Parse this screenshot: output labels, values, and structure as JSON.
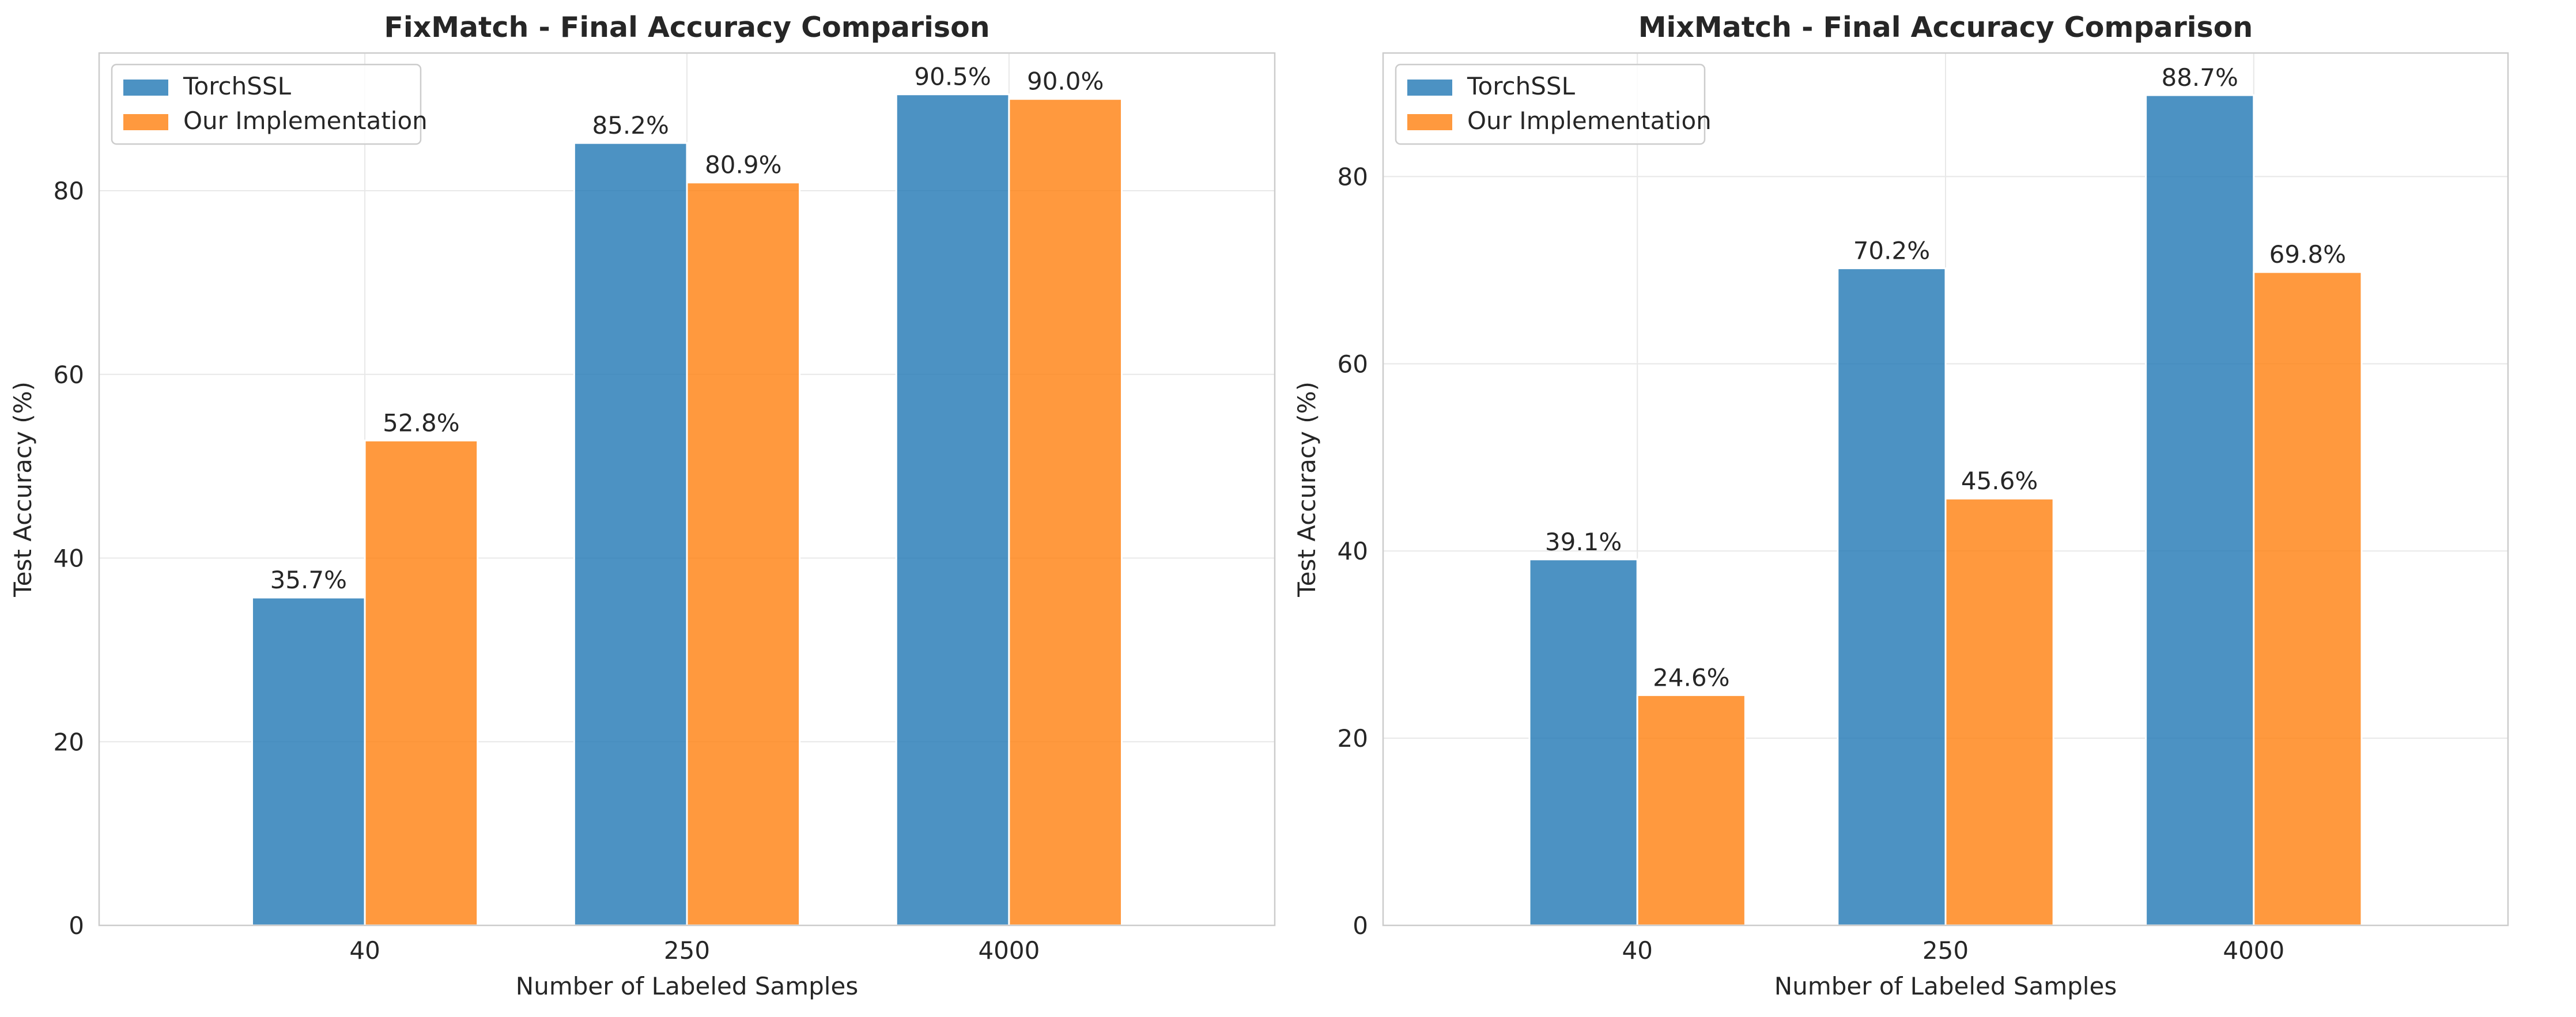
{
  "chart_data": [
    {
      "type": "bar",
      "title": "FixMatch - Final Accuracy Comparison",
      "xlabel": "Number of Labeled Samples",
      "ylabel": "Test Accuracy (%)",
      "categories": [
        "40",
        "250",
        "4000"
      ],
      "series": [
        {
          "name": "TorchSSL",
          "values": [
            35.7,
            85.2,
            90.5
          ],
          "labels": [
            "35.7%",
            "85.2%",
            "90.5%"
          ],
          "color": "#1f77b4"
        },
        {
          "name": "Our Implementation",
          "values": [
            52.8,
            80.9,
            90.0
          ],
          "labels": [
            "52.8%",
            "80.9%",
            "90.0%"
          ],
          "color": "#ff7f0e"
        }
      ],
      "ylim": [
        0,
        95
      ],
      "yticks": [
        0,
        20,
        40,
        60,
        80
      ],
      "grid": true,
      "legend": "top-left"
    },
    {
      "type": "bar",
      "title": "MixMatch - Final Accuracy Comparison",
      "xlabel": "Number of Labeled Samples",
      "ylabel": "Test Accuracy (%)",
      "categories": [
        "40",
        "250",
        "4000"
      ],
      "series": [
        {
          "name": "TorchSSL",
          "values": [
            39.1,
            70.2,
            88.7
          ],
          "labels": [
            "39.1%",
            "70.2%",
            "88.7%"
          ],
          "color": "#1f77b4"
        },
        {
          "name": "Our Implementation",
          "values": [
            24.6,
            45.6,
            69.8
          ],
          "labels": [
            "24.6%",
            "45.6%",
            "69.8%"
          ],
          "color": "#ff7f0e"
        }
      ],
      "ylim": [
        0,
        93.2
      ],
      "yticks": [
        0,
        20,
        40,
        60,
        80
      ],
      "grid": true,
      "legend": "top-left"
    }
  ]
}
